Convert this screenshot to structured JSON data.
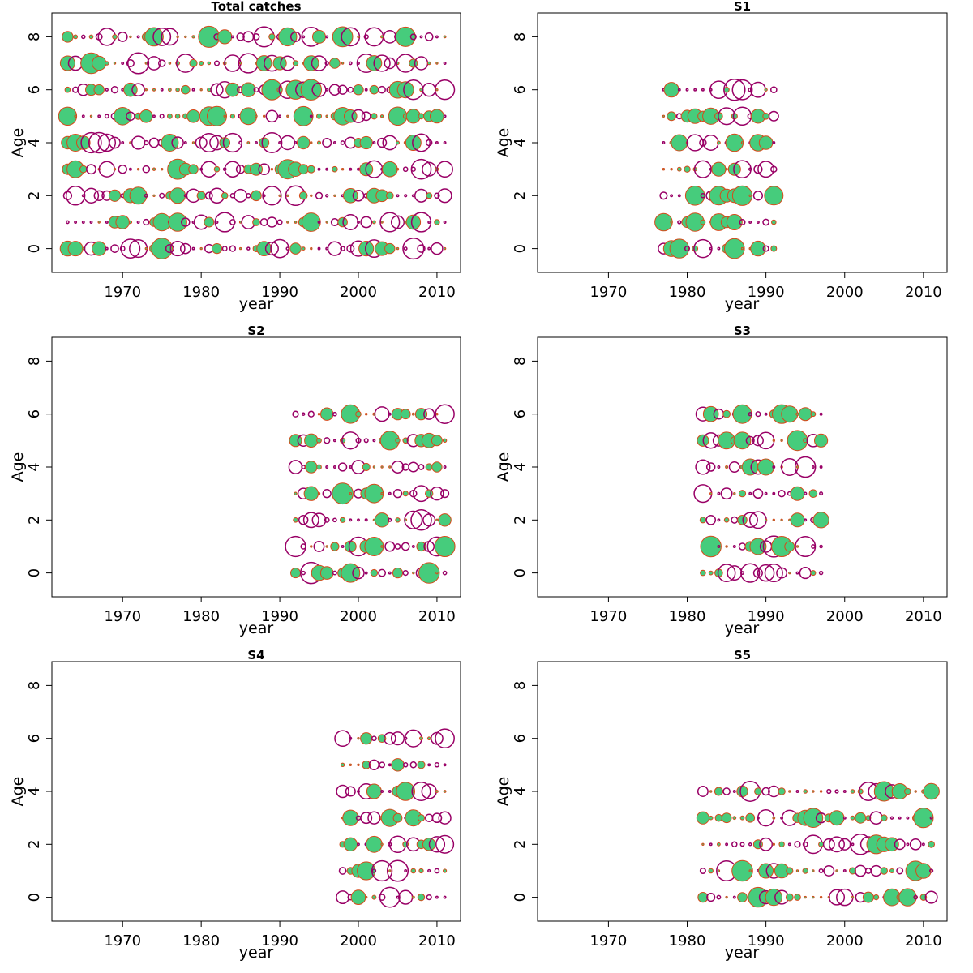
{
  "colors": {
    "positive_fill": "#46cc7c",
    "positive_stroke": "#d64a1a",
    "negative_stroke": "#990066"
  },
  "chart_data": [
    {
      "type": "scatter",
      "subtype": "bubble-residuals",
      "title": "Total catches",
      "xlabel": "year",
      "ylabel": "Age",
      "xlim": [
        1961,
        2013
      ],
      "ylim": [
        -0.9,
        8.9
      ],
      "xticks": [
        "1970",
        "1980",
        "1990",
        "2000",
        "2010"
      ],
      "yticks": [
        "0",
        "2",
        "4",
        "6",
        "8"
      ],
      "grid": false,
      "years": [
        1963,
        2011
      ],
      "ages": [
        0,
        1,
        2,
        3,
        4,
        5,
        6,
        7,
        8
      ]
    },
    {
      "type": "scatter",
      "subtype": "bubble-residuals",
      "title": "S1",
      "xlabel": "year",
      "ylabel": "Age",
      "xlim": [
        1961,
        2013
      ],
      "ylim": [
        -0.9,
        8.9
      ],
      "xticks": [
        "1970",
        "1980",
        "1990",
        "2000",
        "2010"
      ],
      "yticks": [
        "0",
        "2",
        "4",
        "6",
        "8"
      ],
      "grid": false,
      "years": [
        1977,
        1991
      ],
      "ages": [
        0,
        1,
        2,
        3,
        4,
        5,
        6
      ]
    },
    {
      "type": "scatter",
      "subtype": "bubble-residuals",
      "title": "S2",
      "xlabel": "year",
      "ylabel": "Age",
      "xlim": [
        1961,
        2013
      ],
      "ylim": [
        -0.9,
        8.9
      ],
      "xticks": [
        "1970",
        "1980",
        "1990",
        "2000",
        "2010"
      ],
      "yticks": [
        "0",
        "2",
        "4",
        "6",
        "8"
      ],
      "grid": false,
      "years": [
        1992,
        2011
      ],
      "ages": [
        0,
        1,
        2,
        3,
        4,
        5,
        6
      ]
    },
    {
      "type": "scatter",
      "subtype": "bubble-residuals",
      "title": "S3",
      "xlabel": "year",
      "ylabel": "Age",
      "xlim": [
        1961,
        2013
      ],
      "ylim": [
        -0.9,
        8.9
      ],
      "xticks": [
        "1970",
        "1980",
        "1990",
        "2000",
        "2010"
      ],
      "yticks": [
        "0",
        "2",
        "4",
        "6",
        "8"
      ],
      "grid": false,
      "years": [
        1982,
        1997
      ],
      "ages": [
        0,
        1,
        2,
        3,
        4,
        5,
        6
      ]
    },
    {
      "type": "scatter",
      "subtype": "bubble-residuals",
      "title": "S4",
      "xlabel": "year",
      "ylabel": "Age",
      "xlim": [
        1961,
        2013
      ],
      "ylim": [
        -0.9,
        8.9
      ],
      "xticks": [
        "1970",
        "1980",
        "1990",
        "2000",
        "2010"
      ],
      "yticks": [
        "0",
        "2",
        "4",
        "6",
        "8"
      ],
      "grid": false,
      "years": [
        1998,
        2011
      ],
      "ages": [
        0,
        1,
        2,
        3,
        4,
        5,
        6
      ]
    },
    {
      "type": "scatter",
      "subtype": "bubble-residuals",
      "title": "S5",
      "xlabel": "year",
      "ylabel": "Age",
      "xlim": [
        1961,
        2013
      ],
      "ylim": [
        -0.9,
        8.9
      ],
      "xticks": [
        "1970",
        "1980",
        "1990",
        "2000",
        "2010"
      ],
      "yticks": [
        "0",
        "2",
        "4",
        "6",
        "8"
      ],
      "grid": false,
      "years": [
        1982,
        2011
      ],
      "ages": [
        0,
        1,
        2,
        3,
        4
      ]
    }
  ]
}
